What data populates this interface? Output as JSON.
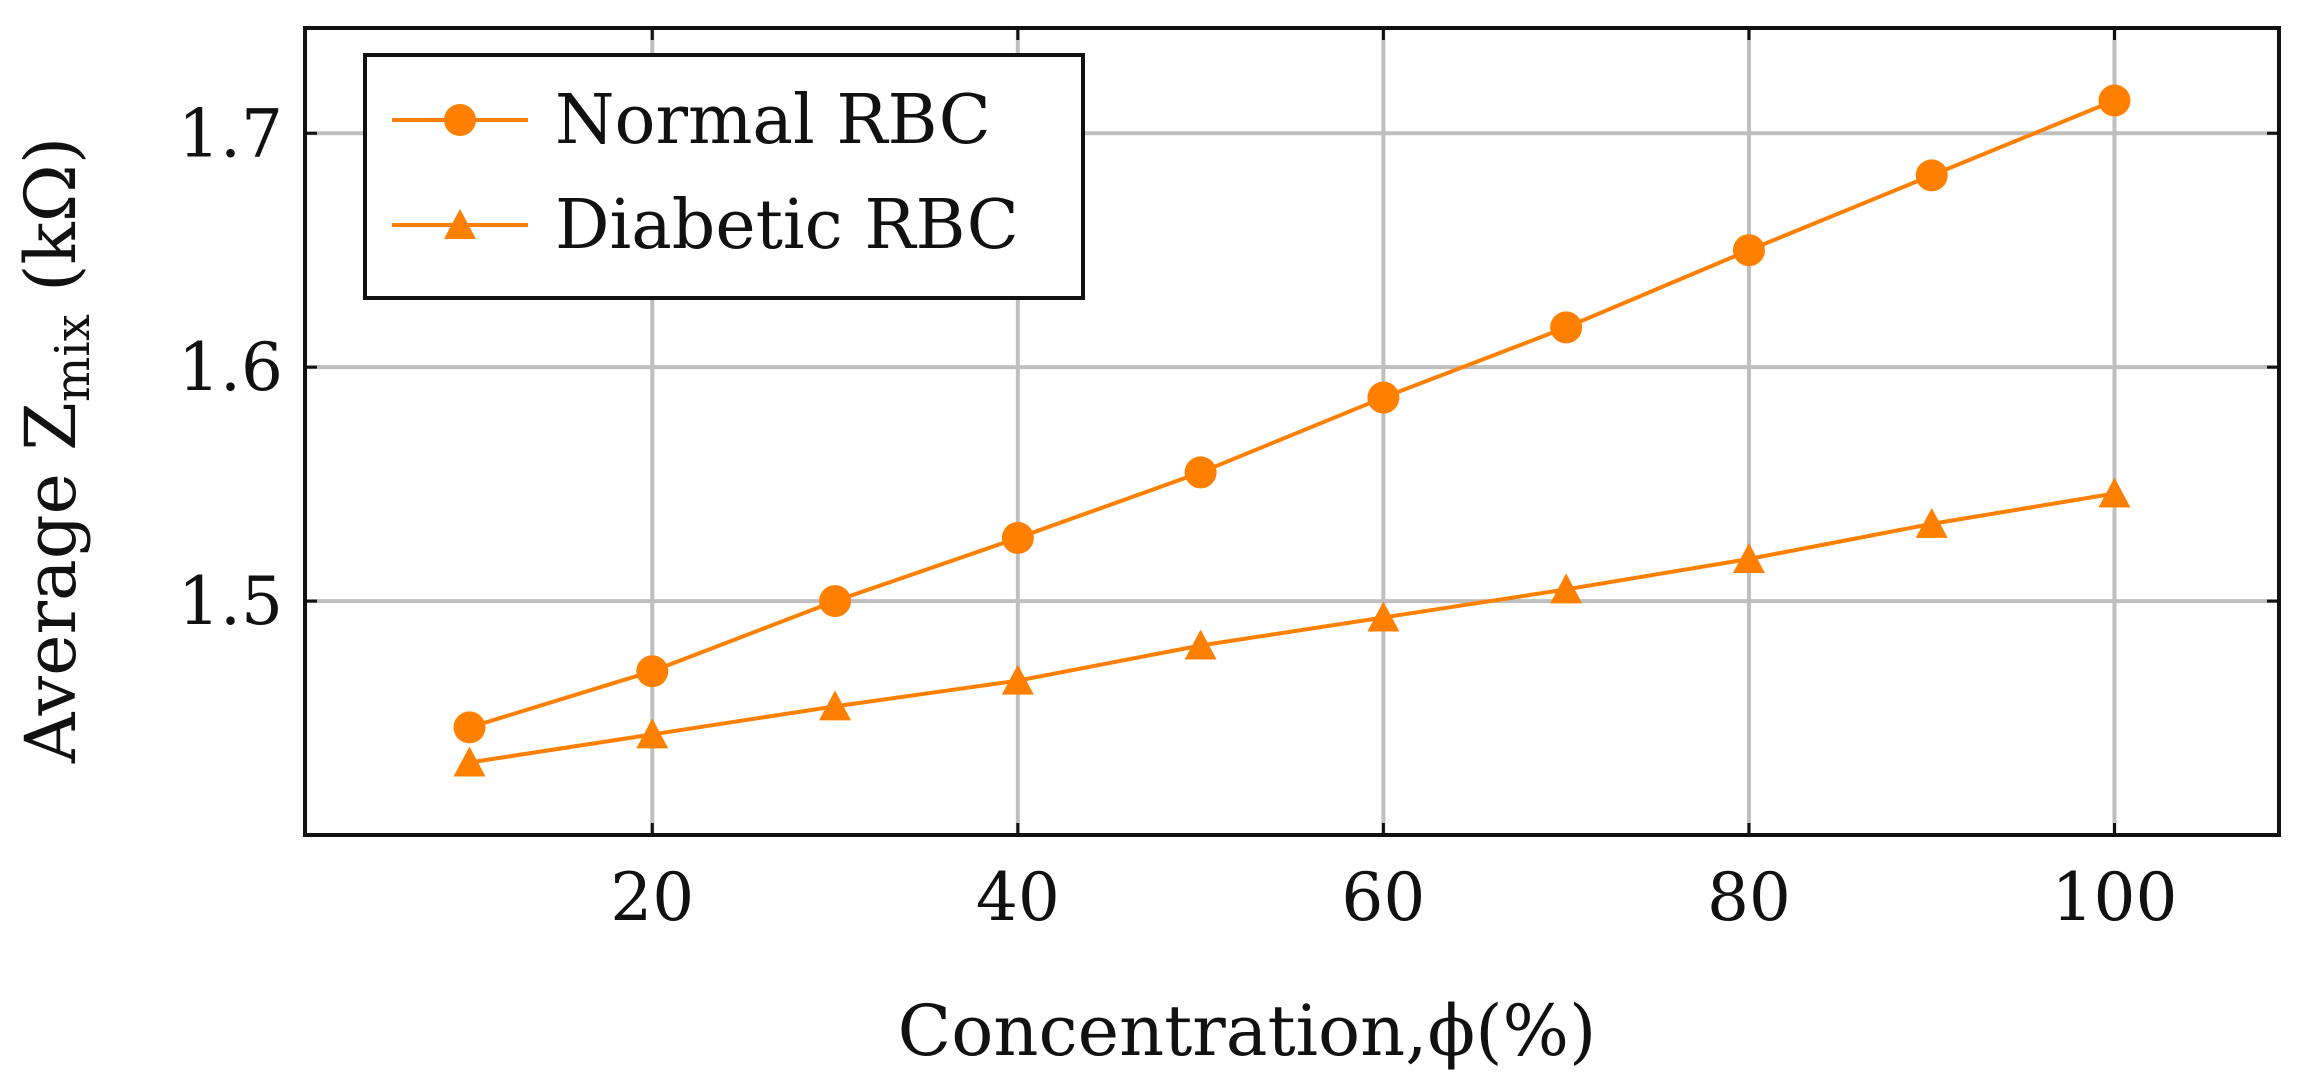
{
  "chart_data": {
    "type": "line",
    "x": [
      10,
      20,
      30,
      40,
      50,
      60,
      70,
      80,
      90,
      100
    ],
    "series": [
      {
        "name": "Normal RBC",
        "marker": "circle",
        "color": "#ff8000",
        "values": [
          1.446,
          1.47,
          1.5,
          1.527,
          1.555,
          1.587,
          1.617,
          1.65,
          1.682,
          1.714
        ]
      },
      {
        "name": "Diabetic RBC",
        "marker": "triangle",
        "color": "#ff8000",
        "values": [
          1.431,
          1.443,
          1.455,
          1.466,
          1.481,
          1.493,
          1.505,
          1.518,
          1.533,
          1.546
        ]
      }
    ],
    "xlim": [
      1,
      109
    ],
    "ylim": [
      1.4,
      1.745
    ],
    "xticks": [
      20,
      40,
      60,
      80,
      100
    ],
    "xtick_labels": [
      "20",
      "40",
      "60",
      "80",
      "100"
    ],
    "yticks": [
      1.5,
      1.6,
      1.7
    ],
    "ytick_labels": [
      "1.5",
      "1.6",
      "1.7"
    ],
    "xlabel": "Concentration,ϕ(%)",
    "ylabel": "Average Z_mix (kΩ)",
    "ylabel_parts": {
      "main": "Average Z",
      "sub": "mix",
      "unit": " (kΩ)"
    },
    "grid": true,
    "legend_position": "top-left"
  }
}
